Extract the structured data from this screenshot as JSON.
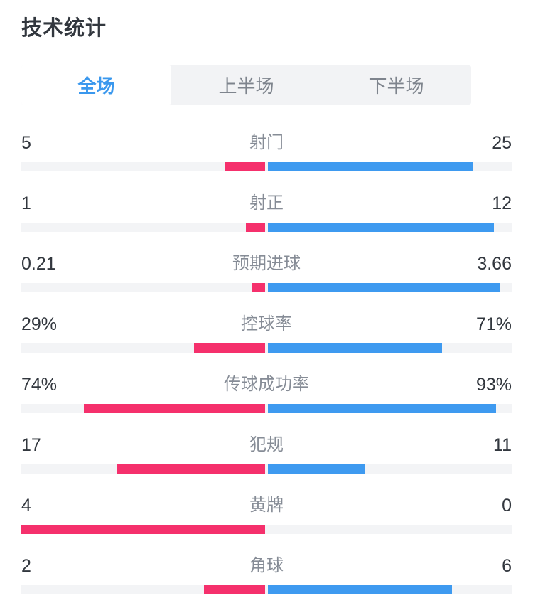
{
  "title": "技术统计",
  "tabs": [
    {
      "label": "全场",
      "active": true
    },
    {
      "label": "上半场",
      "active": false
    },
    {
      "label": "下半场",
      "active": false
    }
  ],
  "colors": {
    "home_bar": "#f5306c",
    "away_bar": "#3e9af0",
    "track": "#f3f4f6",
    "tab_bar_bg": "#f2f3f5",
    "tab_active_text": "#3a98ee",
    "value_text": "#32373e",
    "label_text": "#868c96"
  },
  "chart_data": {
    "type": "bar",
    "title": "技术统计",
    "legend_position": "none",
    "layout": "diverging-from-center, home(pink) left, away(blue) right",
    "rows": [
      {
        "label": "射门",
        "home_display": "5",
        "away_display": "25",
        "home": 5,
        "away": 25,
        "scale": "sum"
      },
      {
        "label": "射正",
        "home_display": "1",
        "away_display": "12",
        "home": 1,
        "away": 12,
        "scale": "sum"
      },
      {
        "label": "预期进球",
        "home_display": "0.21",
        "away_display": "3.66",
        "home": 0.21,
        "away": 3.66,
        "scale": "sum"
      },
      {
        "label": "控球率",
        "home_display": "29%",
        "away_display": "71%",
        "home": 29,
        "away": 71,
        "scale": "percent"
      },
      {
        "label": "传球成功率",
        "home_display": "74%",
        "away_display": "93%",
        "home": 74,
        "away": 93,
        "scale": "percent"
      },
      {
        "label": "犯规",
        "home_display": "17",
        "away_display": "11",
        "home": 17,
        "away": 11,
        "scale": "sum"
      },
      {
        "label": "黄牌",
        "home_display": "4",
        "away_display": "0",
        "home": 4,
        "away": 0,
        "scale": "sum"
      },
      {
        "label": "角球",
        "home_display": "2",
        "away_display": "6",
        "home": 2,
        "away": 6,
        "scale": "sum"
      }
    ]
  }
}
